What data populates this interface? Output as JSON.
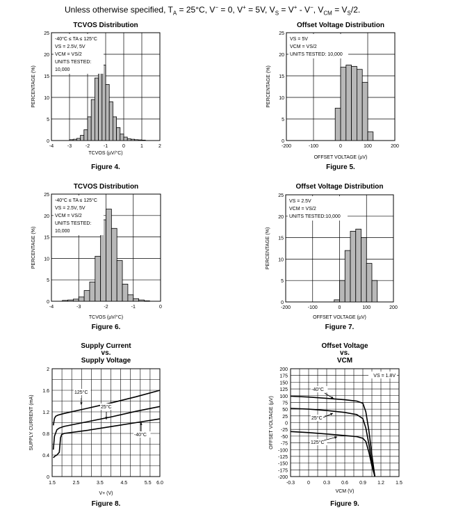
{
  "header": {
    "text": "Unless otherwise specified, TA = 25°C, V− = 0, V+ = 5V, VS = V+ - V−, VCM = VS/2."
  },
  "chart_data": [
    {
      "id": "fig4",
      "type": "histogram",
      "title": "TCVOS Distribution",
      "xlabel": "TCVOS (µV/°C)",
      "ylabel": "PERCENTAGE (%)",
      "caption": "Figure 4.",
      "xlim": [
        -4,
        2
      ],
      "ylim": [
        0,
        25
      ],
      "xticks": [
        -4,
        -3,
        -2,
        -1,
        0,
        1,
        2
      ],
      "yticks": [
        0,
        5,
        10,
        15,
        20,
        25
      ],
      "bin_width": 0.2,
      "bins_start": [
        -3.0,
        -2.8,
        -2.6,
        -2.4,
        -2.2,
        -2.0,
        -1.8,
        -1.6,
        -1.4,
        -1.2,
        -1.0,
        -0.8,
        -0.6,
        -0.4,
        -0.2,
        0.0,
        0.2,
        0.4,
        0.6,
        0.8,
        1.0
      ],
      "values": [
        0.2,
        0.3,
        0.5,
        1.2,
        2.5,
        5.5,
        9.5,
        14.5,
        18.5,
        17.5,
        13.0,
        9.0,
        5.5,
        3.0,
        1.5,
        0.8,
        0.4,
        0.3,
        0.2,
        0.15,
        0.1
      ],
      "legend": [
        "-40°C ≤ TA ≤ 125°C",
        "VS = 2.5V, 5V",
        "VCM = VS/2",
        "UNITS TESTED:",
        "10,000"
      ]
    },
    {
      "id": "fig5",
      "type": "histogram",
      "title": "Offset Voltage Distribution",
      "xlabel": "OFFSET VOLTAGE (µV)",
      "ylabel": "PERCENTAGE (%)",
      "caption": "Figure 5.",
      "xlim": [
        -200,
        200
      ],
      "ylim": [
        0,
        25
      ],
      "xticks": [
        -200,
        -100,
        0,
        100,
        200
      ],
      "yticks": [
        0,
        5,
        10,
        15,
        20,
        25
      ],
      "bin_width": 20,
      "bins_start": [
        -20,
        0,
        20,
        40,
        60,
        80,
        100
      ],
      "values": [
        7.5,
        17.0,
        17.5,
        17.2,
        16.5,
        13.5,
        2.0
      ],
      "legend": [
        "VS = 5V",
        "VCM = VS/2",
        "UNITS TESTED: 10,000"
      ]
    },
    {
      "id": "fig6",
      "type": "histogram",
      "title": "TCVOS Distribution",
      "xlabel": "TCVOS (µV/°C)",
      "ylabel": "PERCENTAGE (%)",
      "caption": "Figure 6.",
      "xlim": [
        -4,
        0
      ],
      "ylim": [
        0,
        25
      ],
      "xticks": [
        -4,
        -3,
        -2,
        -1,
        0
      ],
      "yticks": [
        0,
        5,
        10,
        15,
        20,
        25
      ],
      "bin_width": 0.2,
      "bins_start": [
        -3.6,
        -3.4,
        -3.2,
        -3.0,
        -2.8,
        -2.6,
        -2.4,
        -2.2,
        -2.0,
        -1.8,
        -1.6,
        -1.4,
        -1.2,
        -1.0,
        -0.8,
        -0.6
      ],
      "values": [
        0.2,
        0.3,
        0.5,
        1.0,
        2.5,
        4.5,
        10.5,
        19.0,
        21.5,
        17.0,
        9.5,
        4.0,
        1.5,
        0.6,
        0.3,
        0.1
      ],
      "legend": [
        "-40°C ≤ TA ≤ 125°C",
        "VS = 2.5V, 5V",
        "VCM = VS/2",
        "UNITS TESTED:",
        "10,000"
      ]
    },
    {
      "id": "fig7",
      "type": "histogram",
      "title": "Offset Voltage Distribution",
      "xlabel": "OFFSET VOLTAGE (µV)",
      "ylabel": "PERCENTAGE (%)",
      "caption": "Figure 7.",
      "xlim": [
        -200,
        200
      ],
      "ylim": [
        0,
        25
      ],
      "xticks": [
        -200,
        -100,
        0,
        100,
        200
      ],
      "yticks": [
        0,
        5,
        10,
        15,
        20,
        25
      ],
      "bin_width": 20,
      "bins_start": [
        -20,
        0,
        20,
        40,
        60,
        80,
        100,
        120
      ],
      "values": [
        0.5,
        5.0,
        12.0,
        16.5,
        17.0,
        15.0,
        9.0,
        5.0
      ],
      "legend": [
        "VS = 2.5V",
        "VCM = VS/2",
        "UNITS TESTED:10,000"
      ]
    },
    {
      "id": "fig8",
      "type": "line",
      "title": [
        "Supply Current",
        "vs.",
        "Supply Voltage"
      ],
      "xlabel": "V+ (V)",
      "ylabel": "SUPPLY CURRENT (mA)",
      "caption": "Figure 8.",
      "xlim": [
        1.5,
        6.0
      ],
      "ylim": [
        0,
        2
      ],
      "xticks": [
        1.5,
        2.5,
        3.5,
        4.5,
        5.5,
        6.0
      ],
      "xticklabels": [
        "1.5",
        "2.5",
        "3.5",
        "4.5",
        "5.5",
        "6.0"
      ],
      "yticks": [
        0,
        0.4,
        0.8,
        1.2,
        1.6,
        2
      ],
      "yticklabels": [
        "0",
        "0.4",
        "0.8",
        "1.2",
        "1.6",
        "2"
      ],
      "series": [
        {
          "name": "125°C",
          "x": [
            1.55,
            1.6,
            1.65,
            1.75,
            2.0,
            3.0,
            4.0,
            5.0,
            6.0
          ],
          "y": [
            0.95,
            1.08,
            1.12,
            1.14,
            1.17,
            1.27,
            1.37,
            1.48,
            1.6
          ]
        },
        {
          "name": "25°C",
          "x": [
            1.55,
            1.6,
            1.7,
            1.8,
            2.0,
            3.0,
            4.0,
            5.0,
            6.0
          ],
          "y": [
            0.5,
            0.75,
            0.87,
            0.9,
            0.93,
            1.02,
            1.11,
            1.21,
            1.3
          ]
        },
        {
          "name": "-40°C",
          "x": [
            1.55,
            1.62,
            1.7,
            1.8,
            1.85,
            1.9,
            2.0,
            3.0,
            4.0,
            5.0,
            6.0
          ],
          "y": [
            0.35,
            0.38,
            0.4,
            0.45,
            0.72,
            0.78,
            0.8,
            0.86,
            0.93,
            1.0,
            1.07
          ]
        }
      ],
      "annotations": [
        "125°C",
        "25°C",
        "-40°C"
      ]
    },
    {
      "id": "fig9",
      "type": "line",
      "title": [
        "Offset Voltage",
        "vs.",
        "VCM"
      ],
      "xlabel": "VCM (V)",
      "ylabel": "OFFSET VOLTAGE (µV)",
      "caption": "Figure 9.",
      "xlim": [
        -0.3,
        1.5
      ],
      "ylim": [
        -200,
        200
      ],
      "xticks": [
        -0.3,
        0,
        0.3,
        0.6,
        0.9,
        1.2,
        1.5
      ],
      "xticklabels": [
        "-0.3",
        "0",
        "0.3",
        "0.6",
        "0.9",
        "1.2",
        "1.5"
      ],
      "yticks": [
        -200,
        -175,
        -150,
        -125,
        -100,
        -75,
        -50,
        -25,
        0,
        25,
        50,
        75,
        100,
        125,
        150,
        175,
        200
      ],
      "yticklabels": [
        "-200",
        "-175",
        "-150",
        "-125",
        "-100",
        "-75",
        "-50",
        "-25",
        "0",
        "25",
        "50",
        "75",
        "100",
        "125",
        "150",
        "175",
        "200"
      ],
      "series": [
        {
          "name": "-40°C",
          "x": [
            -0.3,
            0.0,
            0.3,
            0.6,
            0.8,
            0.9,
            0.95,
            1.0,
            1.05,
            1.1
          ],
          "y": [
            98,
            95,
            90,
            85,
            80,
            72,
            40,
            -30,
            -120,
            -200
          ]
        },
        {
          "name": "25°C",
          "x": [
            -0.3,
            0.0,
            0.3,
            0.6,
            0.8,
            0.9,
            0.95,
            1.0,
            1.05,
            1.1
          ],
          "y": [
            53,
            50,
            45,
            38,
            30,
            15,
            -20,
            -80,
            -150,
            -200
          ]
        },
        {
          "name": "125°C",
          "x": [
            -0.3,
            0.0,
            0.3,
            0.6,
            0.8,
            0.9,
            0.95,
            1.0,
            1.05,
            1.1
          ],
          "y": [
            -33,
            -37,
            -42,
            -48,
            -52,
            -58,
            -70,
            -110,
            -160,
            -200
          ]
        }
      ],
      "annotations": [
        "VS = 1.8V",
        "-40°C",
        "25°C",
        "125°C"
      ]
    }
  ]
}
